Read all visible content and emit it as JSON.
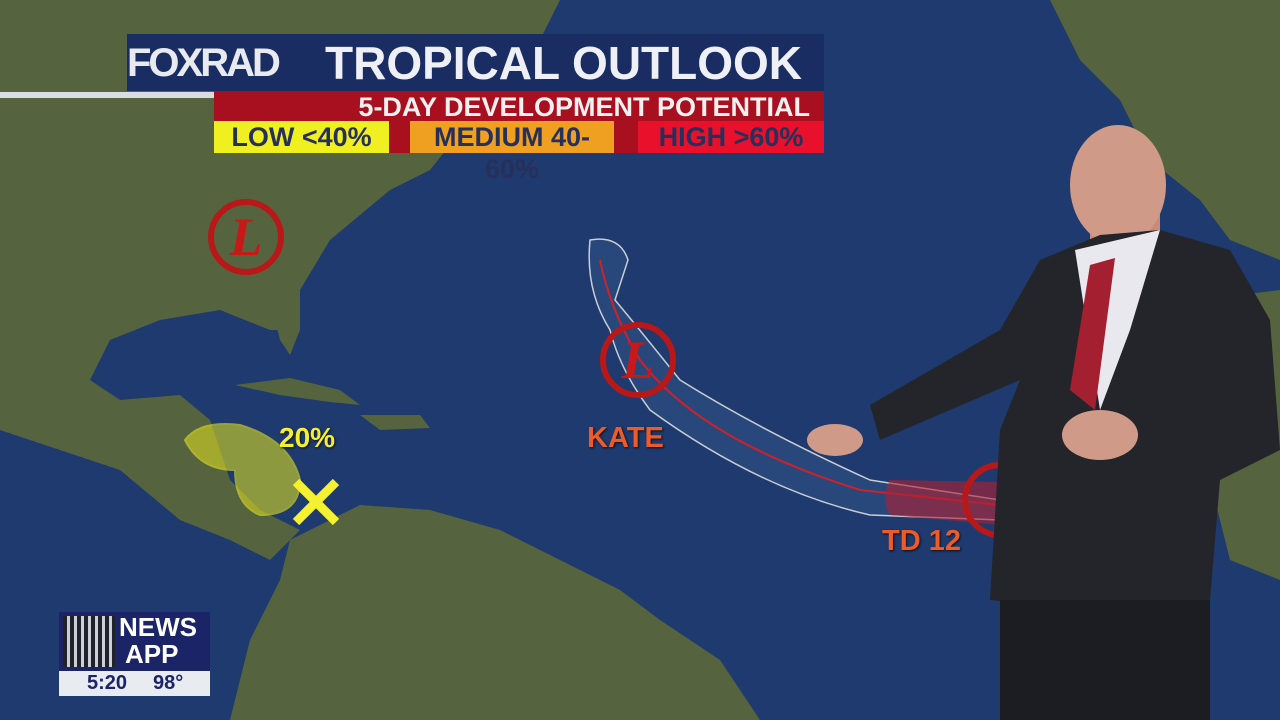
{
  "header": {
    "logo_text": "FOXRAD",
    "title": "TROPICAL OUTLOOK",
    "subtitle": "5-DAY DEVELOPMENT POTENTIAL",
    "legend": [
      {
        "label": "LOW <40%",
        "color": "#f0f020"
      },
      {
        "label": "MEDIUM  40-60%",
        "color": "#f0a020"
      },
      {
        "label": "HIGH  >60%",
        "color": "#e8102a"
      }
    ]
  },
  "map": {
    "ocean_color": "#1e3a6e",
    "land_color": "#4d5e3a",
    "systems": [
      {
        "name": "",
        "type": "low",
        "icon": "low-pressure-icon"
      },
      {
        "name": "KATE",
        "type": "low",
        "icon": "low-pressure-icon"
      },
      {
        "name": "TD 12",
        "type": "low",
        "icon": "low-pressure-icon"
      }
    ],
    "outlook_area": {
      "probability": "20%",
      "marker": "x-icon",
      "color": "#f0f020"
    }
  },
  "news_app": {
    "line1": "NEWS",
    "line2": "APP",
    "time": "5:20",
    "temperature": "98°"
  }
}
